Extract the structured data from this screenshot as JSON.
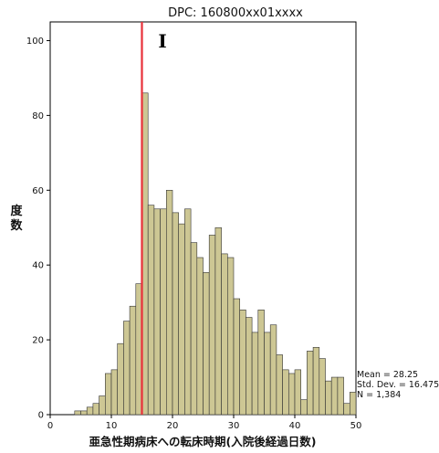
{
  "chart_data": {
    "type": "bar",
    "title": "DPC: 160800xx01xxxx",
    "xlabel": "亜急性期病床への転床時期(入院後経過日数)",
    "ylabel": "度数",
    "xlim": [
      0,
      50
    ],
    "ylim": [
      0,
      105
    ],
    "xticks": [
      "0",
      "10",
      "20",
      "30",
      "40",
      "50"
    ],
    "yticks": [
      "0",
      "20",
      "40",
      "60",
      "80",
      "100"
    ],
    "bin_width": 1,
    "x": [
      0,
      1,
      2,
      3,
      4,
      5,
      6,
      7,
      8,
      9,
      10,
      11,
      12,
      13,
      14,
      15,
      16,
      17,
      18,
      19,
      20,
      21,
      22,
      23,
      24,
      25,
      26,
      27,
      28,
      29,
      30,
      31,
      32,
      33,
      34,
      35,
      36,
      37,
      38,
      39,
      40,
      41,
      42,
      43,
      44,
      45,
      46,
      47,
      48,
      49
    ],
    "values": [
      0,
      0,
      0,
      0,
      1,
      1,
      2,
      3,
      5,
      11,
      12,
      19,
      25,
      29,
      35,
      86,
      56,
      55,
      55,
      60,
      54,
      51,
      55,
      46,
      42,
      38,
      48,
      50,
      43,
      42,
      31,
      28,
      26,
      22,
      28,
      22,
      24,
      16,
      12,
      11,
      12,
      4,
      17,
      18,
      15,
      9,
      10,
      10,
      3,
      6
    ],
    "reference_line": {
      "x": 15,
      "color": "#e8313a"
    },
    "bar_color": "#cdc794",
    "stats": {
      "mean": "Mean = 28.25",
      "std": "Std. Dev. = 16.475",
      "n": "N = 1,384"
    },
    "cursor_glyph": "I"
  }
}
